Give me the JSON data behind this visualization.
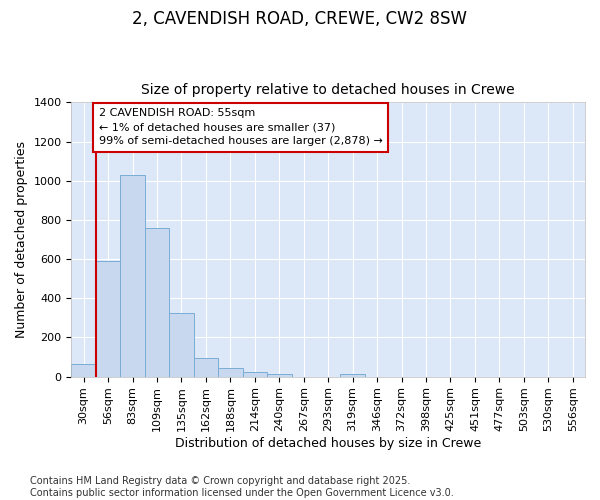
{
  "title": "2, CAVENDISH ROAD, CREWE, CW2 8SW",
  "subtitle": "Size of property relative to detached houses in Crewe",
  "xlabel": "Distribution of detached houses by size in Crewe",
  "ylabel": "Number of detached properties",
  "categories": [
    "30sqm",
    "56sqm",
    "83sqm",
    "109sqm",
    "135sqm",
    "162sqm",
    "188sqm",
    "214sqm",
    "240sqm",
    "267sqm",
    "293sqm",
    "319sqm",
    "346sqm",
    "372sqm",
    "398sqm",
    "425sqm",
    "451sqm",
    "477sqm",
    "503sqm",
    "530sqm",
    "556sqm"
  ],
  "values": [
    65,
    590,
    1030,
    760,
    325,
    95,
    42,
    25,
    15,
    0,
    0,
    15,
    0,
    0,
    0,
    0,
    0,
    0,
    0,
    0,
    0
  ],
  "bar_color": "#c8d8ee",
  "bar_edge_color": "#7aacd6",
  "vline_color": "#cc0000",
  "annotation_text": "2 CAVENDISH ROAD: 55sqm\n← 1% of detached houses are smaller (37)\n99% of semi-detached houses are larger (2,878) →",
  "annotation_box_color": "#cc0000",
  "ylim": [
    0,
    1400
  ],
  "yticks": [
    0,
    200,
    400,
    600,
    800,
    1000,
    1200,
    1400
  ],
  "bg_color": "#dce8f8",
  "grid_color": "#ffffff",
  "fig_bg_color": "#ffffff",
  "footer": "Contains HM Land Registry data © Crown copyright and database right 2025.\nContains public sector information licensed under the Open Government Licence v3.0.",
  "title_fontsize": 12,
  "subtitle_fontsize": 10,
  "label_fontsize": 9,
  "tick_fontsize": 8,
  "footer_fontsize": 7,
  "annot_fontsize": 8
}
